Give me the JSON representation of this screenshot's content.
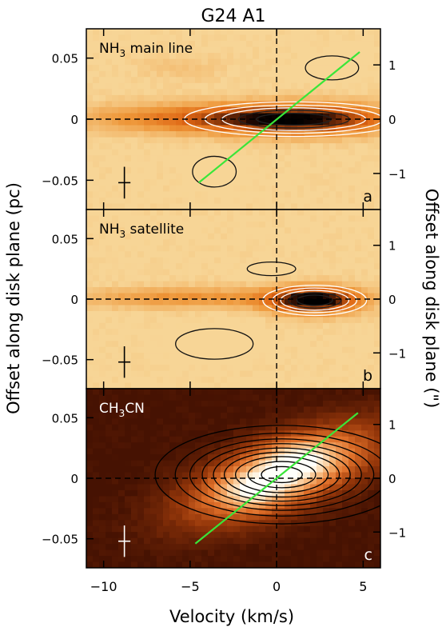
{
  "chart_data": {
    "type": "heatmap",
    "title": "G24 A1",
    "xlabel": "Velocity (km/s)",
    "ylabel_left": "Offset along disk plane (pc)",
    "ylabel_right": "Offset along disk plane (\")",
    "xlim": [
      -11,
      6
    ],
    "ylim_pc": [
      -0.074,
      0.074
    ],
    "x_ticks": [
      -10,
      -5,
      0,
      5
    ],
    "y_ticks_pc": [
      0.05,
      0,
      -0.05
    ],
    "y_ticks_pc_labels": [
      "0.05",
      "0",
      "−0.05"
    ],
    "y_ticks_arcsec": [
      1,
      0,
      -1
    ],
    "y_ticks_arcsec_labels": [
      "1",
      "0",
      "−1"
    ],
    "arcsec_per_pc": 22.5,
    "panels": [
      {
        "letter": "a",
        "label_parts": [
          "NH",
          "3",
          " main line"
        ],
        "colormap": "light",
        "fit_line": {
          "x": [
            -4.5,
            4.8
          ],
          "y_pc": [
            -0.052,
            0.055
          ],
          "color": "#39e639"
        },
        "error_bar": {
          "x": -8.8,
          "y_pc": -0.052,
          "dx": 0.35,
          "dy_pc": 0.013
        },
        "emission": [
          {
            "v": 1.0,
            "y": 0.0,
            "sv": 3.8,
            "sy": 0.0085,
            "a": 1.0
          },
          {
            "v": -6.5,
            "y": 0.001,
            "sv": 3.6,
            "sy": 0.008,
            "a": 0.33
          },
          {
            "v": 3.2,
            "y": 0.042,
            "sv": 1.1,
            "sy": 0.007,
            "a": -0.14
          },
          {
            "v": -3.6,
            "y": -0.043,
            "sv": 0.9,
            "sy": 0.009,
            "a": -0.2
          },
          {
            "v": -5.5,
            "y": 0.042,
            "sv": 1.8,
            "sy": 0.008,
            "a": 0.08
          }
        ]
      },
      {
        "letter": "b",
        "label_parts": [
          "NH",
          "3",
          " satellite"
        ],
        "colormap": "light",
        "fit_line": null,
        "error_bar": {
          "x": -8.8,
          "y_pc": -0.052,
          "dx": 0.35,
          "dy_pc": 0.013
        },
        "emission": [
          {
            "v": 2.2,
            "y": -0.001,
            "sv": 1.8,
            "sy": 0.0075,
            "a": 1.0
          },
          {
            "v": -5.0,
            "y": 0.001,
            "sv": 4.5,
            "sy": 0.006,
            "a": 0.32
          },
          {
            "v": -3.6,
            "y": -0.037,
            "sv": 1.6,
            "sy": 0.009,
            "a": -0.18
          },
          {
            "v": -0.3,
            "y": 0.025,
            "sv": 1.0,
            "sy": 0.004,
            "a": -0.06
          }
        ]
      },
      {
        "letter": "c",
        "label_parts": [
          "CH",
          "3",
          "CN"
        ],
        "colormap": "dark",
        "fit_line": {
          "x": [
            -4.7,
            4.7
          ],
          "y_pc": [
            -0.054,
            0.054
          ],
          "color": "#39e639"
        },
        "error_bar": {
          "x": -8.8,
          "y_pc": -0.052,
          "dx": 0.35,
          "dy_pc": 0.013
        },
        "emission": [
          {
            "v": 0.3,
            "y": 0.003,
            "sv": 3.6,
            "sy": 0.02,
            "a": 0.95,
            "rot": 0.0045
          },
          {
            "v": 1.0,
            "y": 0.018,
            "sv": 1.3,
            "sy": 0.01,
            "a": 0.28
          },
          {
            "v": -1.4,
            "y": -0.01,
            "sv": 1.2,
            "sy": 0.01,
            "a": 0.25
          }
        ]
      }
    ],
    "grid": false,
    "legend": "none"
  }
}
